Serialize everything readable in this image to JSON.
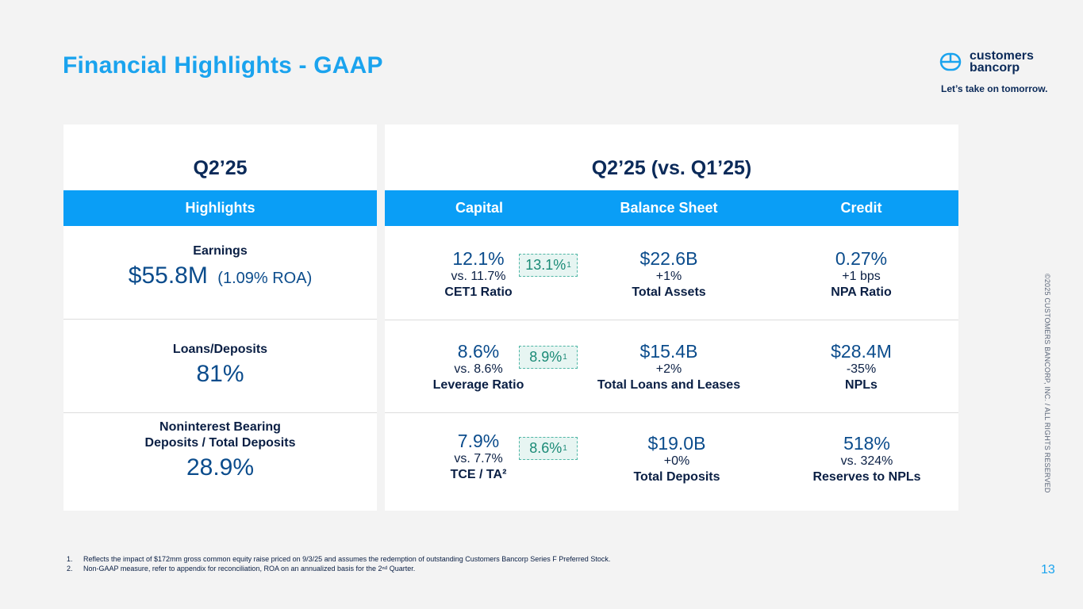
{
  "title": "Financial Highlights - GAAP",
  "logo": {
    "line1": "customers",
    "line2": "bancorp"
  },
  "tagline": "Let’s take on tomorrow.",
  "copyright": "©2025 CUSTOMERS BANCORP, INC. / ALL RIGHTS RESERVED",
  "page_number": "13",
  "left_panel": {
    "heading": "Q2’25",
    "bar_label": "Highlights",
    "earnings": {
      "label": "Earnings",
      "value": "$55.8M",
      "sub": "(1.09% ROA)"
    },
    "loans_deposits": {
      "label": "Loans/Deposits",
      "value": "81%"
    },
    "nib": {
      "label_line1": "Noninterest Bearing",
      "label_line2": "Deposits / Total Deposits",
      "value": "28.9%"
    }
  },
  "right_panel": {
    "heading": "Q2’25 (vs. Q1’25)",
    "columns": {
      "capital": "Capital",
      "balance_sheet": "Balance Sheet",
      "credit": "Credit"
    },
    "capital": [
      {
        "value": "12.1%",
        "compare": "vs. 11.7%",
        "label": "CET1 Ratio",
        "badge": "13.1%",
        "badge_note": "1"
      },
      {
        "value": "8.6%",
        "compare": "vs. 8.6%",
        "label": "Leverage Ratio",
        "badge": "8.9%",
        "badge_note": "1"
      },
      {
        "value": "7.9%",
        "compare": "vs. 7.7%",
        "label": "TCE / TA²",
        "badge": "8.6%",
        "badge_note": "1"
      }
    ],
    "balance_sheet": [
      {
        "value": "$22.6B",
        "compare": "+1%",
        "label": "Total Assets"
      },
      {
        "value": "$15.4B",
        "compare": "+2%",
        "label": "Total Loans and Leases"
      },
      {
        "value": "$19.0B",
        "compare": "+0%",
        "label": "Total Deposits"
      }
    ],
    "credit": [
      {
        "value": "0.27%",
        "compare": "+1 bps",
        "label": "NPA Ratio"
      },
      {
        "value": "$28.4M",
        "compare": "-35%",
        "label": "NPLs"
      },
      {
        "value": "518%",
        "compare": "vs. 324%",
        "label": "Reserves to NPLs"
      }
    ]
  },
  "footnotes": [
    {
      "num": "1.",
      "text": "Reflects the impact of $172mm gross common equity raise priced on 9/3/25 and assumes the redemption of outstanding Customers Bancorp Series F Preferred Stock."
    },
    {
      "num": "2.",
      "text": "Non-GAAP measure, refer to appendix for reconciliation, ROA on an annualized basis for the 2ⁿᵈ Quarter."
    }
  ],
  "colors": {
    "accent": "#1aa3ee",
    "bar": "#0a9ef6",
    "navy": "#0b2a59",
    "value": "#0b4c8c",
    "badge_text": "#1a8a76"
  }
}
